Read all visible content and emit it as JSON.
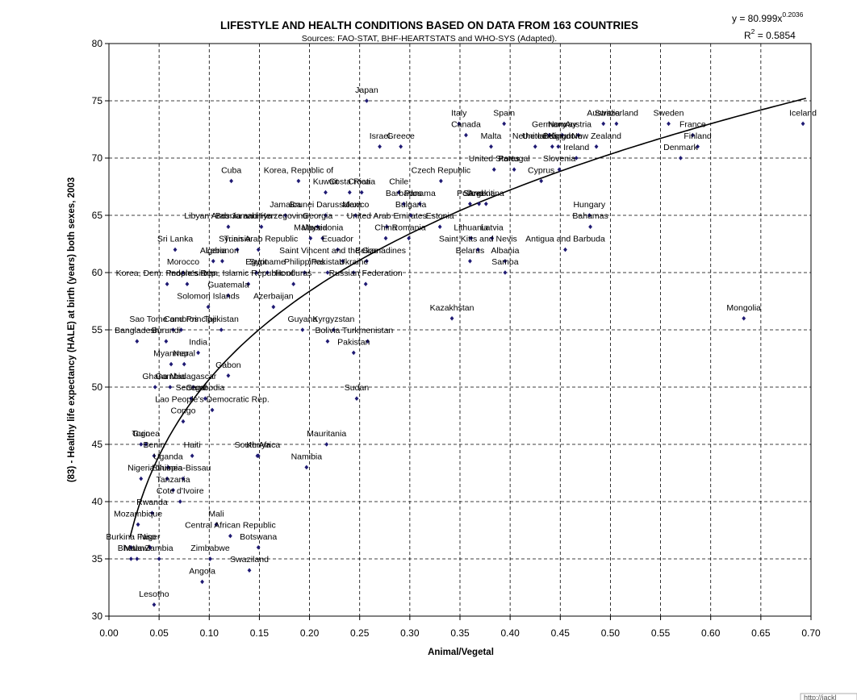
{
  "chart_data": {
    "type": "scatter",
    "title": "LIFESTYLE AND HEALTH CONDITIONS BASED ON DATA FROM 163 COUNTRIES",
    "subtitle": "Sources: FAO-STAT, BHF-HEARTSTATS and WHO-SYS (Adapted).",
    "xlabel": "Animal/Vegetal",
    "ylabel": "(83) - Healthy life expectancy (HALE) at birth (years) both sexes, 2003",
    "xlim": [
      0,
      0.7
    ],
    "ylim": [
      30,
      80
    ],
    "x_ticks": [
      "0.00",
      "0.05",
      "0.10",
      "0.15",
      "0.20",
      "0.25",
      "0.30",
      "0.35",
      "0.40",
      "0.45",
      "0.50",
      "0.55",
      "0.60",
      "0.65",
      "0.70"
    ],
    "y_ticks": [
      "30",
      "35",
      "40",
      "45",
      "50",
      "55",
      "60",
      "65",
      "70",
      "75",
      "80"
    ],
    "grid": "dashed",
    "trendline": {
      "type": "power",
      "a": 80.999,
      "b": 0.2036,
      "equation_prefix": "y = 80.999x",
      "equation_exp": "0.2036",
      "r2_prefix": "R",
      "r2_exp": "2",
      "r2_suffix": " = 0.5854"
    },
    "marker_color": "#1f1a73",
    "points": [
      {
        "label": "Japan",
        "x": 0.257,
        "y": 75
      },
      {
        "label": "Iceland",
        "x": 0.692,
        "y": 73
      },
      {
        "label": "Sweden",
        "x": 0.558,
        "y": 73
      },
      {
        "label": "Switzerland",
        "x": 0.506,
        "y": 73
      },
      {
        "label": "Australia",
        "x": 0.493,
        "y": 73
      },
      {
        "label": "Italy",
        "x": 0.349,
        "y": 73
      },
      {
        "label": "Spain",
        "x": 0.394,
        "y": 73
      },
      {
        "label": "France",
        "x": 0.582,
        "y": 72
      },
      {
        "label": "Canada",
        "x": 0.356,
        "y": 72
      },
      {
        "label": "Germany",
        "x": 0.439,
        "y": 72
      },
      {
        "label": "Norway",
        "x": 0.452,
        "y": 72
      },
      {
        "label": "Austria",
        "x": 0.468,
        "y": 72
      },
      {
        "label": "Israel",
        "x": 0.27,
        "y": 71
      },
      {
        "label": "Greece",
        "x": 0.291,
        "y": 71
      },
      {
        "label": "Malta",
        "x": 0.381,
        "y": 71
      },
      {
        "label": "Netherlands",
        "x": 0.425,
        "y": 71
      },
      {
        "label": "United Kingdom",
        "x": 0.442,
        "y": 71
      },
      {
        "label": "Belgium",
        "x": 0.448,
        "y": 71
      },
      {
        "label": "New Zealand",
        "x": 0.486,
        "y": 71
      },
      {
        "label": "Finland",
        "x": 0.587,
        "y": 71
      },
      {
        "label": "Ireland",
        "x": 0.466,
        "y": 70
      },
      {
        "label": "Denmark",
        "x": 0.57,
        "y": 70
      },
      {
        "label": "United States",
        "x": 0.384,
        "y": 69
      },
      {
        "label": "Portugal",
        "x": 0.404,
        "y": 69
      },
      {
        "label": "Slovenia",
        "x": 0.449,
        "y": 69
      },
      {
        "label": "Czech Republic",
        "x": 0.331,
        "y": 68
      },
      {
        "label": "Cyprus",
        "x": 0.431,
        "y": 68
      },
      {
        "label": "Cuba",
        "x": 0.122,
        "y": 68
      },
      {
        "label": "Korea, Republic of",
        "x": 0.189,
        "y": 68
      },
      {
        "label": "Kuwait",
        "x": 0.216,
        "y": 67
      },
      {
        "label": "Costa Rica",
        "x": 0.24,
        "y": 67
      },
      {
        "label": "Croatia",
        "x": 0.252,
        "y": 67
      },
      {
        "label": "Chile",
        "x": 0.289,
        "y": 67
      },
      {
        "label": "Barbados",
        "x": 0.294,
        "y": 66
      },
      {
        "label": "Panama",
        "x": 0.31,
        "y": 66
      },
      {
        "label": "Poland",
        "x": 0.36,
        "y": 66
      },
      {
        "label": "Slovakia",
        "x": 0.369,
        "y": 66
      },
      {
        "label": "Argentina",
        "x": 0.376,
        "y": 66
      },
      {
        "label": "Jamaica",
        "x": 0.176,
        "y": 65
      },
      {
        "label": "Brunei Darussalam",
        "x": 0.216,
        "y": 65
      },
      {
        "label": "Mexico",
        "x": 0.246,
        "y": 65
      },
      {
        "label": "Bulgaria",
        "x": 0.301,
        "y": 65
      },
      {
        "label": "Hungary",
        "x": 0.479,
        "y": 65
      },
      {
        "label": "Libyan Arab Jamahiriya",
        "x": 0.119,
        "y": 64
      },
      {
        "label": "Bosnia and Herzegovina",
        "x": 0.152,
        "y": 64
      },
      {
        "label": "Georgia",
        "x": 0.208,
        "y": 64
      },
      {
        "label": "United Arab Emirates",
        "x": 0.277,
        "y": 64
      },
      {
        "label": "Estonia",
        "x": 0.33,
        "y": 64
      },
      {
        "label": "Bahamas",
        "x": 0.48,
        "y": 64
      },
      {
        "label": "Malaysia",
        "x": 0.201,
        "y": 63
      },
      {
        "label": "Macedonia",
        "x": 0.213,
        "y": 63
      },
      {
        "label": "China",
        "x": 0.276,
        "y": 63
      },
      {
        "label": "Romania",
        "x": 0.299,
        "y": 63
      },
      {
        "label": "Lithuania",
        "x": 0.361,
        "y": 63
      },
      {
        "label": "Latvia",
        "x": 0.382,
        "y": 63
      },
      {
        "label": "Sri Lanka",
        "x": 0.066,
        "y": 62
      },
      {
        "label": "Tunisia",
        "x": 0.128,
        "y": 62
      },
      {
        "label": "Syrian Arab Republic",
        "x": 0.149,
        "y": 62
      },
      {
        "label": "Ecuador",
        "x": 0.228,
        "y": 62
      },
      {
        "label": "Saint Kitts and Nevis",
        "x": 0.368,
        "y": 62
      },
      {
        "label": "Antigua and Barbuda",
        "x": 0.455,
        "y": 62
      },
      {
        "label": "Algeria",
        "x": 0.104,
        "y": 61
      },
      {
        "label": "Lebanon",
        "x": 0.113,
        "y": 61
      },
      {
        "label": "Belarus",
        "x": 0.36,
        "y": 61
      },
      {
        "label": "Albania",
        "x": 0.395,
        "y": 61
      },
      {
        "label": "Saint Vincent and the Grenadines",
        "x": 0.233,
        "y": 61
      },
      {
        "label": "Belize",
        "x": 0.257,
        "y": 61
      },
      {
        "label": "Morocco",
        "x": 0.074,
        "y": 60
      },
      {
        "label": "Egypt",
        "x": 0.147,
        "y": 60
      },
      {
        "label": "Suriname",
        "x": 0.158,
        "y": 60
      },
      {
        "label": "Philippines",
        "x": 0.195,
        "y": 60
      },
      {
        "label": "Pakistan",
        "x": 0.218,
        "y": 60
      },
      {
        "label": "Ukraine",
        "x": 0.244,
        "y": 60
      },
      {
        "label": "Samoa",
        "x": 0.395,
        "y": 60
      },
      {
        "label": "Korea, Dem. People's Rep.",
        "x": 0.058,
        "y": 59
      },
      {
        "label": "Indonesia",
        "x": 0.078,
        "y": 59
      },
      {
        "label": "Iran, Islamic Republic of",
        "x": 0.139,
        "y": 59
      },
      {
        "label": "Honduras",
        "x": 0.184,
        "y": 59
      },
      {
        "label": "Russian Federation",
        "x": 0.256,
        "y": 59
      },
      {
        "label": "Guatemala",
        "x": 0.119,
        "y": 58
      },
      {
        "label": "Azerbaijan",
        "x": 0.164,
        "y": 57
      },
      {
        "label": "Solomon Islands",
        "x": 0.099,
        "y": 57
      },
      {
        "label": "Mongolia",
        "x": 0.633,
        "y": 56
      },
      {
        "label": "Kazakhstan",
        "x": 0.342,
        "y": 56
      },
      {
        "label": "Comoros",
        "x": 0.072,
        "y": 55
      },
      {
        "label": "Sao Tome and Principe",
        "x": 0.064,
        "y": 55
      },
      {
        "label": "Tajikistan",
        "x": 0.112,
        "y": 55
      },
      {
        "label": "Guyana",
        "x": 0.193,
        "y": 55
      },
      {
        "label": "Kyrgyzstan",
        "x": 0.224,
        "y": 55
      },
      {
        "label": "Bolivia",
        "x": 0.218,
        "y": 54
      },
      {
        "label": "Turkmenistan",
        "x": 0.258,
        "y": 54
      },
      {
        "label": "Bangladesh",
        "x": 0.028,
        "y": 54
      },
      {
        "label": "Burundi",
        "x": 0.057,
        "y": 54
      },
      {
        "label": "Pakistan",
        "x": 0.244,
        "y": 53
      },
      {
        "label": "India",
        "x": 0.089,
        "y": 53
      },
      {
        "label": "Myanmar",
        "x": 0.062,
        "y": 52
      },
      {
        "label": "Nepal",
        "x": 0.075,
        "y": 52
      },
      {
        "label": "Gabon",
        "x": 0.119,
        "y": 51
      },
      {
        "label": "Ghana",
        "x": 0.046,
        "y": 50
      },
      {
        "label": "Gambia",
        "x": 0.061,
        "y": 50
      },
      {
        "label": "Madagascar",
        "x": 0.084,
        "y": 50
      },
      {
        "label": "Sudan",
        "x": 0.247,
        "y": 49
      },
      {
        "label": "Senegal",
        "x": 0.082,
        "y": 49
      },
      {
        "label": "Cambodia",
        "x": 0.096,
        "y": 49
      },
      {
        "label": "Lao People's Democratic Rep.",
        "x": 0.103,
        "y": 48
      },
      {
        "label": "Congo",
        "x": 0.074,
        "y": 47
      },
      {
        "label": "Togo",
        "x": 0.032,
        "y": 45
      },
      {
        "label": "Guinea",
        "x": 0.037,
        "y": 45
      },
      {
        "label": "Benin",
        "x": 0.045,
        "y": 44
      },
      {
        "label": "Haiti",
        "x": 0.083,
        "y": 44
      },
      {
        "label": "South Africa",
        "x": 0.148,
        "y": 44
      },
      {
        "label": "Kenya",
        "x": 0.149,
        "y": 44
      },
      {
        "label": "Mauritania",
        "x": 0.217,
        "y": 45
      },
      {
        "label": "Namibia",
        "x": 0.197,
        "y": 43
      },
      {
        "label": "Uganda",
        "x": 0.059,
        "y": 43
      },
      {
        "label": "Nigeria",
        "x": 0.032,
        "y": 42
      },
      {
        "label": "Ethiopia",
        "x": 0.058,
        "y": 42
      },
      {
        "label": "Guinea-Bissau",
        "x": 0.074,
        "y": 42
      },
      {
        "label": "Tanzania",
        "x": 0.064,
        "y": 41
      },
      {
        "label": "Cote d'Ivoire",
        "x": 0.071,
        "y": 40
      },
      {
        "label": "Rwanda",
        "x": 0.043,
        "y": 39
      },
      {
        "label": "Mali",
        "x": 0.107,
        "y": 38
      },
      {
        "label": "Mozambique",
        "x": 0.029,
        "y": 38
      },
      {
        "label": "Central African Republic",
        "x": 0.121,
        "y": 37
      },
      {
        "label": "Burkina Faso",
        "x": 0.022,
        "y": 36
      },
      {
        "label": "Niger",
        "x": 0.041,
        "y": 36
      },
      {
        "label": "Botswana",
        "x": 0.149,
        "y": 36
      },
      {
        "label": "Bhutan",
        "x": 0.022,
        "y": 35
      },
      {
        "label": "Malawi",
        "x": 0.028,
        "y": 35
      },
      {
        "label": "Zambia",
        "x": 0.05,
        "y": 35
      },
      {
        "label": "Zimbabwe",
        "x": 0.101,
        "y": 35
      },
      {
        "label": "Swaziland",
        "x": 0.14,
        "y": 34
      },
      {
        "label": "Angola",
        "x": 0.093,
        "y": 33
      },
      {
        "label": "Lesotho",
        "x": 0.045,
        "y": 31
      }
    ]
  },
  "footer": {
    "partial_text": "http://jackl"
  }
}
